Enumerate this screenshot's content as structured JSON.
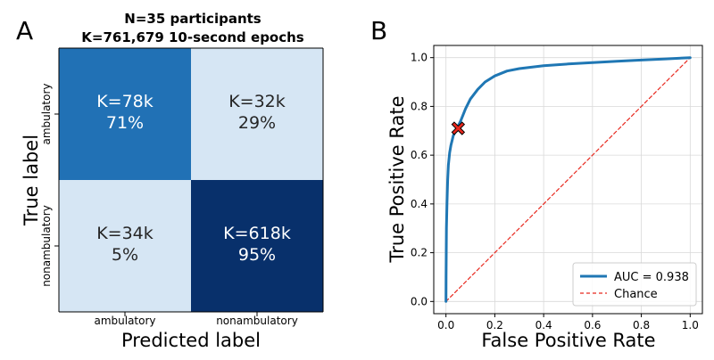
{
  "chart_data": [
    {
      "type": "heatmap",
      "panel_label": "A",
      "title_lines": [
        "N=35 participants",
        "K=761,679 10-second epochs"
      ],
      "xlabel": "Predicted label",
      "ylabel": "True label",
      "x_categories": [
        "ambulatory",
        "nonambulatory"
      ],
      "y_categories": [
        "ambulatory",
        "nonambulatory"
      ],
      "cells": [
        {
          "row": 0,
          "col": 0,
          "count": "K=78k",
          "percent": "71%",
          "value": 0.71,
          "fill": "#2171b5",
          "text_color": "#ffffff"
        },
        {
          "row": 0,
          "col": 1,
          "count": "K=32k",
          "percent": "29%",
          "value": 0.29,
          "fill": "#d6e6f4",
          "text_color": "#262626"
        },
        {
          "row": 1,
          "col": 0,
          "count": "K=34k",
          "percent": "5%",
          "value": 0.05,
          "fill": "#d6e6f4",
          "text_color": "#262626"
        },
        {
          "row": 1,
          "col": 1,
          "count": "K=618k",
          "percent": "95%",
          "value": 0.95,
          "fill": "#08306b",
          "text_color": "#ffffff"
        }
      ]
    },
    {
      "type": "line",
      "panel_label": "B",
      "xlabel": "False Positive Rate",
      "ylabel": "True Positive Rate",
      "xlim": [
        -0.05,
        1.05
      ],
      "ylim": [
        -0.05,
        1.05
      ],
      "xticks": [
        "0.0",
        "0.2",
        "0.4",
        "0.6",
        "0.8",
        "1.0"
      ],
      "yticks": [
        "0.0",
        "0.2",
        "0.4",
        "0.6",
        "0.8",
        "1.0"
      ],
      "grid": true,
      "legend_position": "bottom-right",
      "series": [
        {
          "name": "AUC = 0.938",
          "color": "#1f77b4",
          "style": "solid",
          "x": [
            0.0,
            0.0005,
            0.001,
            0.002,
            0.004,
            0.007,
            0.01,
            0.015,
            0.02,
            0.03,
            0.04,
            0.05,
            0.06,
            0.08,
            0.1,
            0.13,
            0.16,
            0.2,
            0.25,
            0.3,
            0.4,
            0.5,
            0.6,
            0.7,
            0.8,
            0.9,
            1.0
          ],
          "y": [
            0.0,
            0.1,
            0.2,
            0.3,
            0.4,
            0.5,
            0.56,
            0.61,
            0.64,
            0.68,
            0.7,
            0.72,
            0.74,
            0.79,
            0.83,
            0.87,
            0.9,
            0.925,
            0.945,
            0.955,
            0.967,
            0.974,
            0.98,
            0.985,
            0.99,
            0.995,
            1.0
          ]
        },
        {
          "name": "Chance",
          "color": "#e8281e",
          "style": "dashed",
          "x": [
            0.0,
            1.0
          ],
          "y": [
            0.0,
            1.0
          ]
        }
      ],
      "marker": {
        "x": 0.05,
        "y": 0.71,
        "symbol": "X",
        "color": "#e8281e"
      }
    }
  ]
}
